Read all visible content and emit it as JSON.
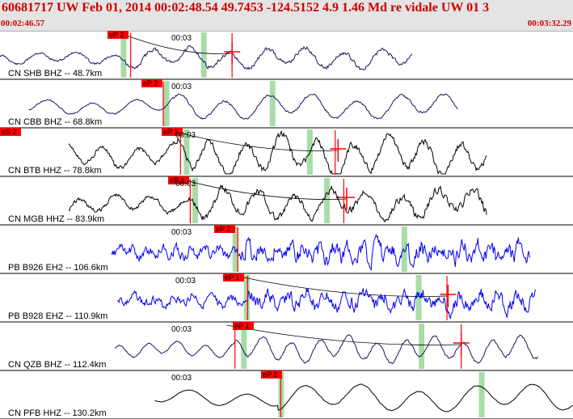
{
  "header": {
    "title": "60681717 UW Feb 01, 2014 00:02:48.54   49.7453 -124.5152  4.9 1.46 Md re vidale UW 01    3",
    "time_start": "00:02:46.57",
    "time_end": "00:03:32.29"
  },
  "colors": {
    "header_text": "#cc0000",
    "trace_dark": "#1a0a44",
    "trace_black": "#000000",
    "trace_blue": "#0000ee",
    "pick": "#ff0000",
    "window": "#a8dca8"
  },
  "traces": [
    {
      "label": "CN SHB BHZ -- 48.7km",
      "time_label": "00:03",
      "picks": [
        {
          "label": "eP 2"
        }
      ],
      "color": "#2a1060",
      "amp": 0.45,
      "freq": 1.5,
      "noise": 0.25,
      "start": 0.0,
      "end": 0.72,
      "onset": 0.22,
      "seed": 11,
      "greens": [
        0.215,
        0.355
      ],
      "redlines": [
        0.228,
        0.405
      ],
      "tick": 0.405,
      "curve": 1
    },
    {
      "label": "CN CBB BHZ -- 68.8km",
      "time_label": "00:03",
      "picks": [
        {
          "label": "eP 2"
        }
      ],
      "color": "#2a1060",
      "amp": 0.55,
      "freq": 1.3,
      "noise": 0.15,
      "start": 0.05,
      "end": 0.8,
      "onset": 0.285,
      "seed": 23,
      "greens": [
        0.29,
        0.475
      ],
      "redlines": [
        0.285
      ],
      "tick": null,
      "curve": 0
    },
    {
      "label": "CN BTB HHZ -- 78.8km",
      "time_label": "00:03",
      "picks": [
        {
          "label": "eP 1"
        },
        {
          "label": "eS 2"
        }
      ],
      "color": "#000000",
      "amp": 0.85,
      "freq": 1.6,
      "noise": 0.45,
      "start": 0.12,
      "end": 0.85,
      "onset": 0.31,
      "seed": 37,
      "greens": [
        0.325,
        0.54
      ],
      "redlines": [
        0.315,
        0.585
      ],
      "tick": 0.59,
      "curve": 1
    },
    {
      "label": "CN MGB HHZ -- 83.9km",
      "time_label": "00:03",
      "picks": [
        {
          "label": "eP 1"
        }
      ],
      "color": "#000000",
      "amp": 0.65,
      "freq": 1.6,
      "noise": 0.5,
      "start": 0.12,
      "end": 0.85,
      "onset": 0.325,
      "seed": 41,
      "greens": [
        0.34,
        0.57
      ],
      "redlines": [
        0.332,
        0.6
      ],
      "tick": 0.605,
      "curve": 1
    },
    {
      "label": "PB B926 EH2 -- 106.6km",
      "time_label": "00:03",
      "picks": [
        {
          "label": "eP 2"
        }
      ],
      "color": "#0000ee",
      "amp": 0.35,
      "freq": 4.0,
      "noise": 1.1,
      "start": 0.195,
      "end": 0.925,
      "onset": 0.42,
      "seed": 53,
      "greens": [
        0.41,
        0.705
      ],
      "redlines": [
        0.415
      ],
      "tick": null,
      "curve": 0
    },
    {
      "label": "PB B928 EHZ -- 110.9km",
      "time_label": "00:03",
      "picks": [
        {
          "label": "eP 1"
        }
      ],
      "color": "#0000ee",
      "amp": 0.35,
      "freq": 3.0,
      "noise": 0.9,
      "start": 0.205,
      "end": 0.935,
      "onset": 0.43,
      "seed": 67,
      "greens": [
        0.43,
        0.73
      ],
      "redlines": [
        0.432,
        0.78
      ],
      "tick": 0.782,
      "curve": 1
    },
    {
      "label": "CN QZB BHZ -- 112.4km",
      "time_label": "00:03",
      "picks": [
        {
          "label": "eP 1"
        }
      ],
      "color": "#2a1060",
      "amp": 0.55,
      "freq": 2.0,
      "noise": 0.15,
      "start": 0.2,
      "end": 0.94,
      "onset": 0.41,
      "seed": 79,
      "greens": [
        0.425,
        0.735
      ],
      "redlines": [
        0.41,
        0.805
      ],
      "tick": 0.805,
      "curve": 1
    },
    {
      "label": "CN PFB HHZ -- 130.2km",
      "time_label": "00:03",
      "picks": [
        {
          "label": "eP 2"
        }
      ],
      "color": "#000000",
      "amp": 0.6,
      "freq": 1.0,
      "noise": 0.05,
      "start": 0.27,
      "end": 1.0,
      "onset": 0.485,
      "seed": 97,
      "greens": [
        0.49,
        0.84
      ],
      "redlines": [
        0.49
      ],
      "tick": null,
      "curve": 0
    }
  ]
}
